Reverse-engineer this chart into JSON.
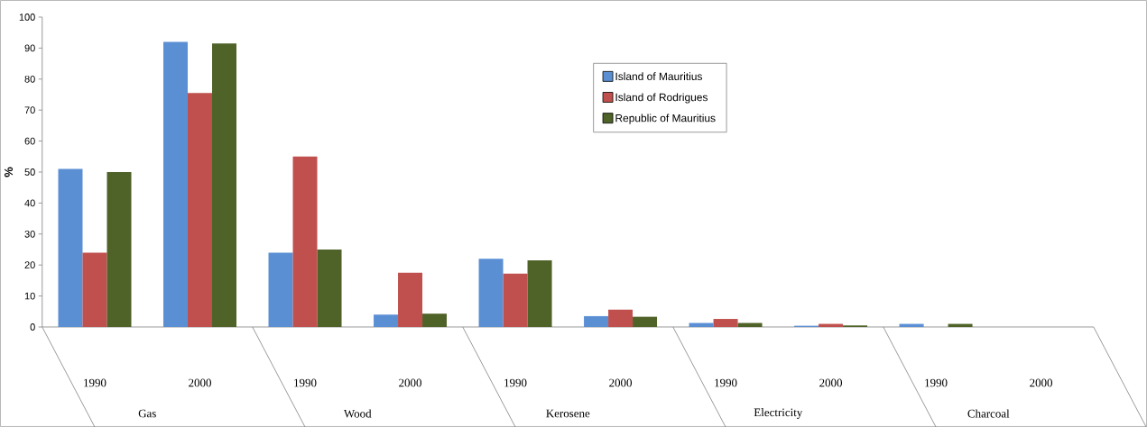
{
  "chart_data": {
    "type": "bar",
    "ylabel": "%",
    "categories": [
      "1990",
      "2000",
      "1990",
      "2000",
      "1990",
      "2000",
      "1990",
      "2000",
      "1990",
      "2000"
    ],
    "annotations": [
      "Gas",
      "Wood",
      "Kerosene",
      "Electricity",
      "Charcoal"
    ],
    "series": [
      {
        "name": "Island of Mauritius",
        "color": "#5b8fd4",
        "values": [
          51,
          92,
          24,
          4,
          22,
          3.5,
          1.3,
          0.4,
          1.0,
          0
        ]
      },
      {
        "name": "Island of Rodrigues",
        "color": "#c0504d",
        "values": [
          24,
          75.5,
          55,
          17.5,
          17.2,
          5.6,
          2.6,
          1.0,
          0,
          0
        ]
      },
      {
        "name": "Republic of Mauritius",
        "color": "#4f6228",
        "values": [
          50,
          91.5,
          25,
          4.3,
          21.5,
          3.3,
          1.3,
          0.5,
          1.0,
          0
        ]
      }
    ],
    "ylim": [
      0,
      100
    ],
    "yticks": [
      0,
      10,
      20,
      30,
      40,
      50,
      60,
      70,
      80,
      90,
      100
    ],
    "grid": false,
    "legend": "top right"
  }
}
